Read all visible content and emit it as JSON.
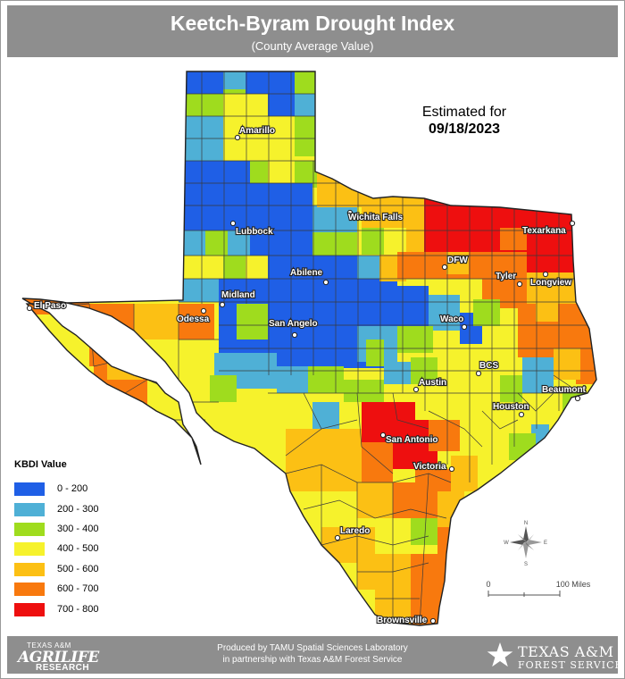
{
  "header": {
    "title": "Keetch-Byram Drought Index",
    "subtitle": "(County Average Value)"
  },
  "date": {
    "label": "Estimated for",
    "value": "09/18/2023"
  },
  "legend": {
    "title": "KBDI Value",
    "items": [
      {
        "label": "0 - 200",
        "color": "#1f5fe6"
      },
      {
        "label": "200 - 300",
        "color": "#4fb0d6"
      },
      {
        "label": "300 - 400",
        "color": "#9fdc1e"
      },
      {
        "label": "400 - 500",
        "color": "#f6f22c"
      },
      {
        "label": "500 - 600",
        "color": "#fcc014"
      },
      {
        "label": "600 - 700",
        "color": "#f8790e"
      },
      {
        "label": "700 - 800",
        "color": "#ee0f0f"
      }
    ]
  },
  "cities": [
    {
      "name": "Amarillo"
    },
    {
      "name": "Wichita Falls"
    },
    {
      "name": "Texarkana"
    },
    {
      "name": "Lubbock"
    },
    {
      "name": "DFW"
    },
    {
      "name": "Tyler"
    },
    {
      "name": "Longview"
    },
    {
      "name": "Abilene"
    },
    {
      "name": "El Paso"
    },
    {
      "name": "Midland"
    },
    {
      "name": "Odessa"
    },
    {
      "name": "San Angelo"
    },
    {
      "name": "Waco"
    },
    {
      "name": "BCS"
    },
    {
      "name": "Austin"
    },
    {
      "name": "Beaumont"
    },
    {
      "name": "Houston"
    },
    {
      "name": "San Antonio"
    },
    {
      "name": "Victoria"
    },
    {
      "name": "Laredo"
    },
    {
      "name": "Brownsville"
    }
  ],
  "compass": {
    "n": "N",
    "s": "S",
    "e": "E",
    "w": "W"
  },
  "scale": {
    "start": "0",
    "end": "100 Miles"
  },
  "footer": {
    "line1": "Produced by TAMU Spatial Sciences Laboratory",
    "line2": "in partnership with Texas A&M Forest Service",
    "logo_left": {
      "line1": "TEXAS A&M",
      "line2": "AGRILIFE",
      "line3": "RESEARCH"
    },
    "logo_right": {
      "line1": "TEXAS A&M",
      "line2": "FOREST SERVICE"
    }
  }
}
